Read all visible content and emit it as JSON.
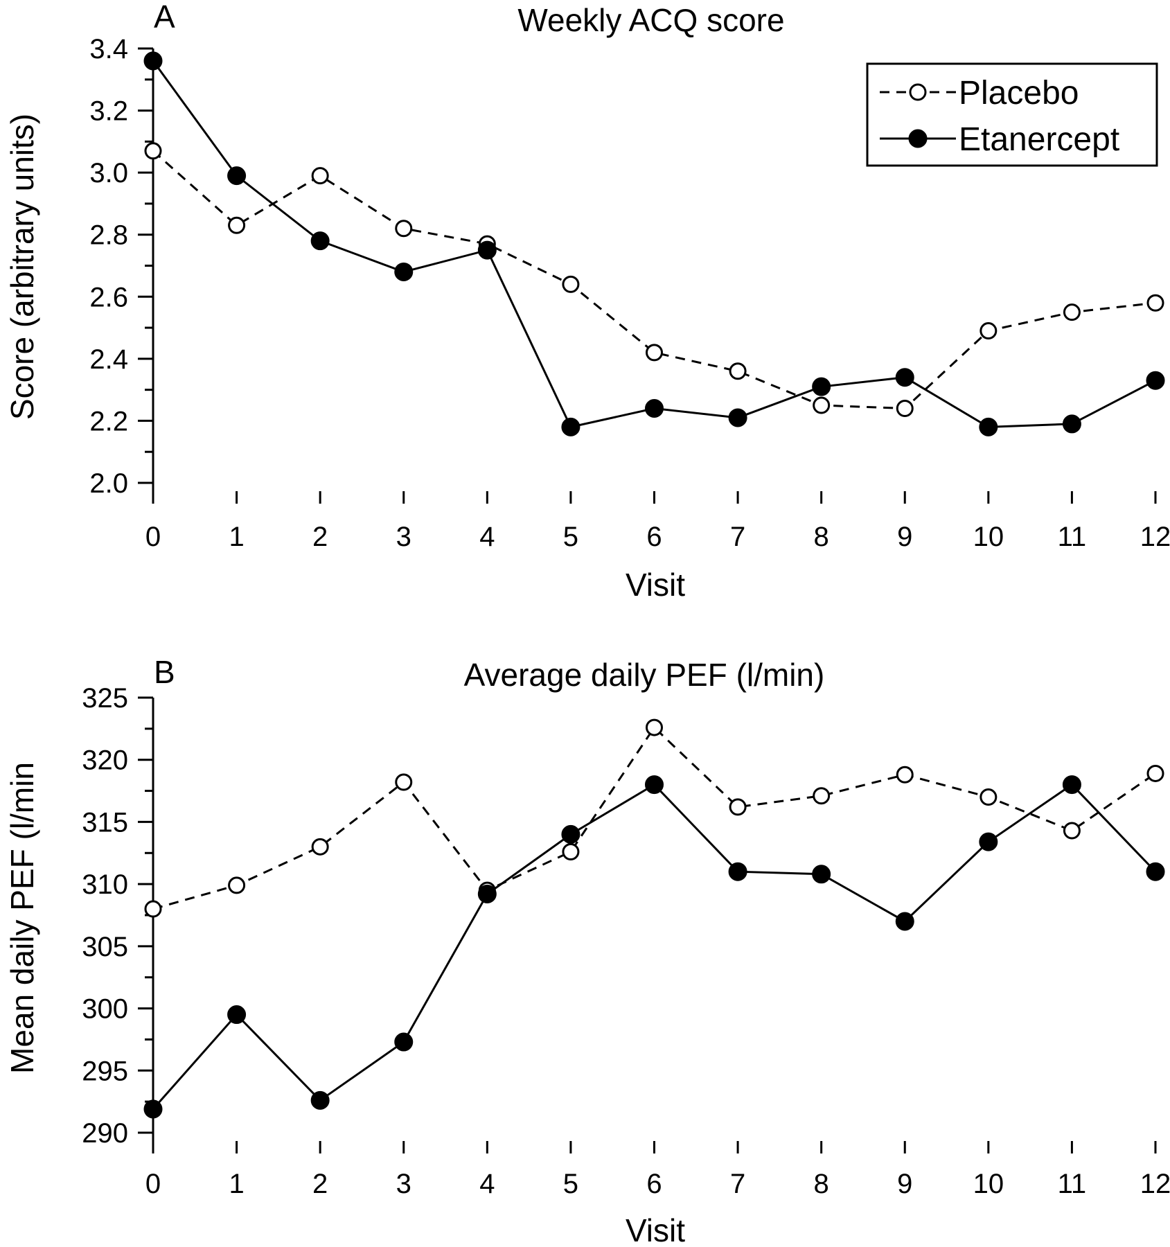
{
  "figure": {
    "legend": {
      "entries": [
        {
          "label": "Placebo",
          "marker": "open-circle",
          "line": "dashed"
        },
        {
          "label": "Etanercept",
          "marker": "filled-circle",
          "line": "solid"
        }
      ]
    }
  },
  "chart_data": [
    {
      "type": "line",
      "panel": "A",
      "title": "Weekly ACQ score",
      "xlabel": "Visit",
      "ylabel": "Score (arbitrary units)",
      "x": [
        0,
        1,
        2,
        3,
        4,
        5,
        6,
        7,
        8,
        9,
        10,
        11,
        12
      ],
      "xticks": [
        "0",
        "1",
        "2",
        "3",
        "4",
        "5",
        "6",
        "7",
        "8",
        "9",
        "10",
        "11",
        "12"
      ],
      "ylim": [
        2.0,
        3.4
      ],
      "yticks": [
        "2.0",
        "2.2",
        "2.4",
        "2.6",
        "2.8",
        "3.0",
        "3.2",
        "3.4"
      ],
      "series": [
        {
          "name": "Placebo",
          "marker": "open-circle",
          "line": "dashed",
          "values": [
            3.07,
            2.83,
            2.99,
            2.82,
            2.77,
            2.64,
            2.42,
            2.36,
            2.25,
            2.24,
            2.49,
            2.55,
            2.58
          ]
        },
        {
          "name": "Etanercept",
          "marker": "filled-circle",
          "line": "solid",
          "values": [
            3.36,
            2.99,
            2.78,
            2.68,
            2.75,
            2.18,
            2.24,
            2.21,
            2.31,
            2.34,
            2.18,
            2.19,
            2.33
          ]
        }
      ],
      "legend": "top-right",
      "grid": false
    },
    {
      "type": "line",
      "panel": "B",
      "title": "Average daily PEF (l/min)",
      "xlabel": "Visit",
      "ylabel": "Mean daily PEF (l/min",
      "x": [
        0,
        1,
        2,
        3,
        4,
        5,
        6,
        7,
        8,
        9,
        10,
        11,
        12
      ],
      "xticks": [
        "0",
        "1",
        "2",
        "3",
        "4",
        "5",
        "6",
        "7",
        "8",
        "9",
        "10",
        "11",
        "12"
      ],
      "ylim": [
        290,
        325
      ],
      "yticks": [
        "290",
        "295",
        "300",
        "305",
        "310",
        "315",
        "320",
        "325"
      ],
      "series": [
        {
          "name": "Placebo",
          "marker": "open-circle",
          "line": "dashed",
          "values": [
            308.0,
            309.9,
            313.0,
            318.2,
            309.5,
            312.6,
            322.6,
            316.2,
            317.1,
            318.8,
            317.0,
            314.3,
            318.9
          ]
        },
        {
          "name": "Etanercept",
          "marker": "filled-circle",
          "line": "solid",
          "values": [
            291.9,
            299.5,
            292.6,
            297.3,
            309.2,
            314.0,
            318.0,
            311.0,
            310.8,
            307.0,
            313.4,
            318.0,
            311.0
          ]
        }
      ],
      "grid": false
    }
  ]
}
